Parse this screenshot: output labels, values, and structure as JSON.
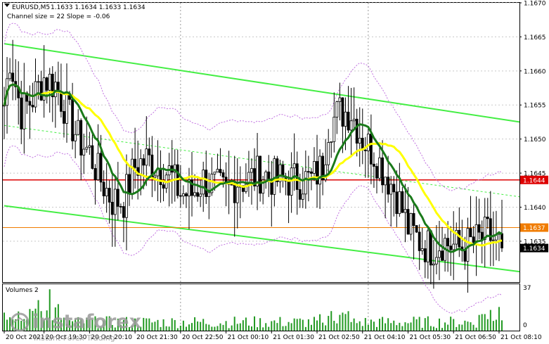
{
  "chart_data": [
    {
      "type": "candlestick",
      "header": {
        "symbol": "EURUSD,M5",
        "ohlc": "1.1633 1.1634 1.1633 1.1634",
        "indicator": "Channel size = 22 Slope = -0.06"
      },
      "ylim": [
        1.1629,
        1.167
      ],
      "ticks": [
        "1.1670",
        "1.1665",
        "1.1660",
        "1.1655",
        "1.1650",
        "1.1645",
        "1.1640",
        "1.1635"
      ],
      "tick_values": [
        1.167,
        1.1665,
        1.166,
        1.1655,
        1.165,
        1.1645,
        1.164,
        1.1635
      ],
      "time_labels": [
        "20 Oct 2021",
        "20 Oct 19:30",
        "20 Oct 20:10",
        "20 Oct 21:30",
        "20 Oct 22:50",
        "21 Oct 00:10",
        "21 Oct 01:30",
        "21 Oct 02:50",
        "21 Oct 04:10",
        "21 Oct 05:30",
        "21 Oct 06:50",
        "21 Oct 08:10"
      ],
      "bars": 176,
      "anchor_closes": [
        [
          0,
          1.1655
        ],
        [
          2,
          1.1662
        ],
        [
          6,
          1.1654
        ],
        [
          10,
          1.1656
        ],
        [
          14,
          1.1659
        ],
        [
          18,
          1.1658
        ],
        [
          22,
          1.1654
        ],
        [
          26,
          1.165
        ],
        [
          30,
          1.1648
        ],
        [
          34,
          1.1644
        ],
        [
          38,
          1.1641
        ],
        [
          42,
          1.1641
        ],
        [
          46,
          1.1646
        ],
        [
          50,
          1.1647
        ],
        [
          54,
          1.1646
        ],
        [
          58,
          1.1645
        ],
        [
          62,
          1.1642
        ],
        [
          66,
          1.1642
        ],
        [
          70,
          1.1644
        ],
        [
          74,
          1.1643
        ],
        [
          78,
          1.1642
        ],
        [
          82,
          1.1644
        ],
        [
          86,
          1.1644
        ],
        [
          90,
          1.1645
        ],
        [
          96,
          1.1644
        ],
        [
          102,
          1.1644
        ],
        [
          108,
          1.1644
        ],
        [
          112,
          1.1646
        ],
        [
          114,
          1.1652
        ],
        [
          118,
          1.1654
        ],
        [
          122,
          1.1654
        ],
        [
          126,
          1.165
        ],
        [
          130,
          1.1648
        ],
        [
          134,
          1.1645
        ],
        [
          138,
          1.1642
        ],
        [
          142,
          1.1637
        ],
        [
          146,
          1.1635
        ],
        [
          150,
          1.1634
        ],
        [
          154,
          1.1635
        ],
        [
          160,
          1.1634
        ],
        [
          166,
          1.1635
        ],
        [
          170,
          1.1636
        ],
        [
          175,
          1.1634
        ]
      ],
      "channel_upper": [
        [
          0,
          1.1664
        ],
        [
          175,
          1.16527
        ]
      ],
      "channel_lower": [
        [
          0,
          1.16402
        ],
        [
          175,
          1.16307
        ]
      ],
      "channel_mid": [
        [
          0,
          1.1652
        ],
        [
          175,
          1.16417
        ]
      ],
      "levels": [
        {
          "label": "1.1644",
          "value": 1.1644,
          "color": "#dd0000"
        },
        {
          "label": "1.1637",
          "value": 1.1637,
          "color": "#f07c00"
        },
        {
          "label": "1.1634",
          "value": 1.1634,
          "color": "#000000"
        }
      ],
      "ma_fast_color": "#1a7a1a",
      "ma_slow_color": "#ffff00",
      "channel_color": "#44ee44",
      "envelope_color": "#c070e0"
    },
    {
      "type": "bar",
      "title": "Volumes 2",
      "ylim": [
        0,
        37
      ],
      "ticks": [
        "37",
        "0"
      ],
      "color": "#229922"
    }
  ],
  "watermark": {
    "brand": "instaforex",
    "tagline": "Instant Forex Trading"
  }
}
